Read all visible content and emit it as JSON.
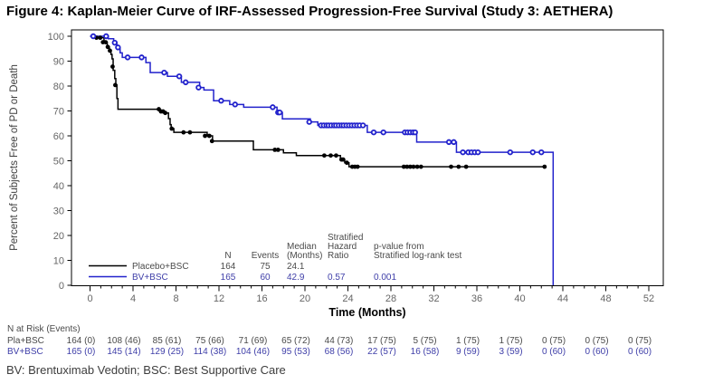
{
  "title": "Figure 4: Kaplan-Meier Curve of IRF-Assessed Progression-Free Survival (Study 3: AETHERA)",
  "footnote": "BV: Brentuximab Vedotin; BSC: Best Supportive Care",
  "colors": {
    "placebo_curve": "#000000",
    "bv_curve": "#2222cc",
    "gray_text": "#595959",
    "blue_text": "#3e3ea8",
    "tick_label": "#666666",
    "axis": "#000000"
  },
  "chart_data": {
    "type": "line",
    "subtype": "kaplan-meier-step",
    "xlabel": "Time (Months)",
    "ylabel": "Percent of Subjects Free of PD or Death",
    "xlim": [
      0,
      52
    ],
    "xtick_step": 4,
    "xminor_step": 1,
    "ylim": [
      0,
      100
    ],
    "ytick_step": 10,
    "grid": false,
    "series": [
      {
        "name": "Placebo+BSC",
        "color": "#000000",
        "marker": "filled-circle",
        "start": [
          0,
          100
        ],
        "drops": [
          [
            0.5,
            99.4
          ],
          [
            1.3,
            97.6
          ],
          [
            1.6,
            95.7
          ],
          [
            1.8,
            94.2
          ],
          [
            1.95,
            92.7
          ],
          [
            2.05,
            90.9
          ],
          [
            2.15,
            86.3
          ],
          [
            2.3,
            83.0
          ],
          [
            2.4,
            80.4
          ],
          [
            2.5,
            75.0
          ],
          [
            2.6,
            70.7
          ],
          [
            6.5,
            69.8
          ],
          [
            6.9,
            69.2
          ],
          [
            7.3,
            66.9
          ],
          [
            7.45,
            64.5
          ],
          [
            7.55,
            62.9
          ],
          [
            7.8,
            61.4
          ],
          [
            10.9,
            60.0
          ],
          [
            11.4,
            57.9
          ],
          [
            15.2,
            54.4
          ],
          [
            18.0,
            53.2
          ],
          [
            19.2,
            52.1
          ],
          [
            23.3,
            50.5
          ],
          [
            23.7,
            49.2
          ],
          [
            24.1,
            47.6
          ]
        ],
        "end_t": 42.4,
        "censors": [
          [
            0.6,
            99.4
          ],
          [
            0.95,
            99.4
          ],
          [
            1.2,
            97.6
          ],
          [
            1.45,
            97.6
          ],
          [
            1.65,
            95.7
          ],
          [
            1.85,
            94.2
          ],
          [
            2.1,
            87.8
          ],
          [
            2.35,
            80.4
          ],
          [
            6.4,
            70.7
          ],
          [
            6.6,
            69.8
          ],
          [
            6.8,
            69.8
          ],
          [
            7.0,
            69.2
          ],
          [
            7.6,
            62.9
          ],
          [
            8.7,
            61.4
          ],
          [
            9.3,
            61.4
          ],
          [
            10.7,
            60.0
          ],
          [
            11.1,
            60.0
          ],
          [
            11.35,
            57.9
          ],
          [
            17.2,
            54.4
          ],
          [
            17.5,
            54.4
          ],
          [
            21.8,
            52.1
          ],
          [
            22.4,
            52.1
          ],
          [
            22.9,
            52.1
          ],
          [
            23.4,
            50.5
          ],
          [
            23.55,
            50.5
          ],
          [
            23.9,
            49.2
          ],
          [
            24.4,
            47.6
          ],
          [
            24.65,
            47.6
          ],
          [
            24.9,
            47.6
          ],
          [
            29.2,
            47.6
          ],
          [
            29.5,
            47.6
          ],
          [
            29.8,
            47.6
          ],
          [
            30.1,
            47.6
          ],
          [
            30.45,
            47.6
          ],
          [
            30.8,
            47.6
          ],
          [
            33.6,
            47.6
          ],
          [
            34.3,
            47.6
          ],
          [
            35.0,
            47.6
          ],
          [
            42.3,
            47.6
          ]
        ]
      },
      {
        "name": "BV+BSC",
        "color": "#2222cc",
        "marker": "open-circle",
        "start": [
          0,
          100
        ],
        "drops": [
          [
            1.7,
            99.0
          ],
          [
            2.2,
            97.4
          ],
          [
            2.5,
            95.5
          ],
          [
            2.8,
            93.3
          ],
          [
            3.0,
            91.5
          ],
          [
            5.2,
            89.4
          ],
          [
            5.6,
            85.4
          ],
          [
            7.2,
            83.9
          ],
          [
            8.5,
            81.5
          ],
          [
            10.2,
            79.4
          ],
          [
            10.6,
            78.4
          ],
          [
            11.5,
            74.1
          ],
          [
            13.0,
            72.6
          ],
          [
            14.3,
            71.5
          ],
          [
            17.4,
            69.4
          ],
          [
            17.9,
            66.8
          ],
          [
            20.5,
            65.6
          ],
          [
            21.2,
            64.2
          ],
          [
            25.8,
            61.4
          ],
          [
            30.4,
            57.5
          ],
          [
            34.1,
            53.4
          ],
          [
            43.1,
            0
          ]
        ],
        "end_t": 43.1,
        "censors": [
          [
            0.3,
            100
          ],
          [
            1.5,
            100
          ],
          [
            2.3,
            97.4
          ],
          [
            2.6,
            95.5
          ],
          [
            3.5,
            91.5
          ],
          [
            4.8,
            91.5
          ],
          [
            6.9,
            85.4
          ],
          [
            8.3,
            83.9
          ],
          [
            8.9,
            81.5
          ],
          [
            10.1,
            79.4
          ],
          [
            12.2,
            74.1
          ],
          [
            13.5,
            72.6
          ],
          [
            17.0,
            71.5
          ],
          [
            17.5,
            69.4
          ],
          [
            17.65,
            69.4
          ],
          [
            20.4,
            65.6
          ],
          [
            21.5,
            64.2
          ],
          [
            21.75,
            64.2
          ],
          [
            22.0,
            64.2
          ],
          [
            22.2,
            64.2
          ],
          [
            22.45,
            64.2
          ],
          [
            22.7,
            64.2
          ],
          [
            22.9,
            64.2
          ],
          [
            23.15,
            64.2
          ],
          [
            23.4,
            64.2
          ],
          [
            23.6,
            64.2
          ],
          [
            23.85,
            64.2
          ],
          [
            24.1,
            64.2
          ],
          [
            24.35,
            64.2
          ],
          [
            24.6,
            64.2
          ],
          [
            24.85,
            64.2
          ],
          [
            25.1,
            64.2
          ],
          [
            25.4,
            64.2
          ],
          [
            26.4,
            61.4
          ],
          [
            27.3,
            61.4
          ],
          [
            29.3,
            61.4
          ],
          [
            29.55,
            61.4
          ],
          [
            29.8,
            61.4
          ],
          [
            30.05,
            61.4
          ],
          [
            30.25,
            61.4
          ],
          [
            33.4,
            57.5
          ],
          [
            33.85,
            57.5
          ],
          [
            34.7,
            53.4
          ],
          [
            35.2,
            53.4
          ],
          [
            35.5,
            53.4
          ],
          [
            35.8,
            53.4
          ],
          [
            36.1,
            53.4
          ],
          [
            39.1,
            53.4
          ],
          [
            41.2,
            53.4
          ],
          [
            42.0,
            53.4
          ]
        ]
      }
    ],
    "legend_stats": {
      "headers": {
        "n": [
          "N"
        ],
        "events": [
          "Events"
        ],
        "median": [
          "Median",
          "(Months)"
        ],
        "hr": [
          "Stratified",
          "Hazard",
          "Ratio"
        ],
        "p": [
          "p-value from",
          "Stratified log-rank test"
        ]
      },
      "rows": [
        {
          "label": "Placebo+BSC",
          "n": "164",
          "events": "75",
          "median": "24.1",
          "hr": "",
          "p": "",
          "text_color": "#4a4a4a",
          "line_color": "#000000"
        },
        {
          "label": "BV+BSC",
          "n": "165",
          "events": "60",
          "median": "42.9",
          "hr": "0.57",
          "p": "0.001",
          "text_color": "#3e3ea8",
          "line_color": "#2222cc"
        }
      ]
    },
    "risk_table": {
      "title": "N at Risk (Events)",
      "months": [
        0,
        4,
        8,
        12,
        16,
        20,
        24,
        28,
        32,
        36,
        40,
        44,
        48,
        52
      ],
      "rows": [
        {
          "label": "Pla+BSC",
          "text_color": "#4a4a4a",
          "values": [
            "164 (0)",
            "108 (46)",
            "85 (61)",
            "75 (66)",
            "71 (69)",
            "65 (72)",
            "44 (73)",
            "17 (75)",
            "5 (75)",
            "1 (75)",
            "1 (75)",
            "0 (75)",
            "0 (75)",
            "0 (75)"
          ]
        },
        {
          "label": "BV+BSC",
          "text_color": "#3e3ea8",
          "values": [
            "165 (0)",
            "145 (14)",
            "129 (25)",
            "114 (38)",
            "104 (46)",
            "95 (53)",
            "68 (56)",
            "22 (57)",
            "16 (58)",
            "9 (59)",
            "3 (59)",
            "0 (60)",
            "0 (60)",
            "0 (60)"
          ]
        }
      ]
    }
  }
}
